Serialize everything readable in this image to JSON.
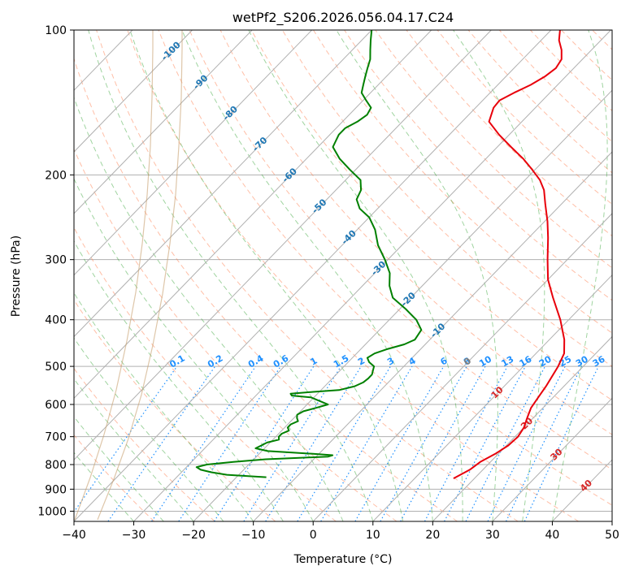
{
  "chart_data": {
    "type": "line",
    "subtype": "skew-T log-P diagram",
    "title": "wetPf2_S206.2026.056.04.17.C24",
    "xlabel": "Temperature (°C)",
    "ylabel": "Pressure (hPa)",
    "xlim": [
      -40,
      50
    ],
    "ylim": [
      1050,
      100
    ],
    "y_scale": "log",
    "grid": true,
    "x_ticks": [
      "−40",
      "−30",
      "−20",
      "−10",
      "0",
      "10",
      "20",
      "30",
      "40",
      "50"
    ],
    "x_tick_values": [
      -40,
      -30,
      -20,
      -10,
      0,
      10,
      20,
      30,
      40,
      50
    ],
    "y_ticks": [
      "100",
      "200",
      "300",
      "400",
      "500",
      "600",
      "700",
      "800",
      "900",
      "1000"
    ],
    "y_tick_values": [
      100,
      200,
      300,
      400,
      500,
      600,
      700,
      800,
      900,
      1000
    ],
    "series": [
      {
        "kind": "temperature",
        "color": "#e8000b",
        "points": [
          [
            855,
            16.5
          ],
          [
            820,
            17.8
          ],
          [
            790,
            18.3
          ],
          [
            760,
            19.5
          ],
          [
            730,
            20.3
          ],
          [
            700,
            20.5
          ],
          [
            670,
            20.0
          ],
          [
            640,
            19.0
          ],
          [
            610,
            18.0
          ],
          [
            580,
            17.5
          ],
          [
            550,
            17.0
          ],
          [
            520,
            16.3
          ],
          [
            500,
            15.8
          ],
          [
            470,
            14.7
          ],
          [
            440,
            12.5
          ],
          [
            400,
            8.6
          ],
          [
            360,
            3.8
          ],
          [
            330,
            0.0
          ],
          [
            300,
            -3.3
          ],
          [
            270,
            -6.8
          ],
          [
            250,
            -9.5
          ],
          [
            230,
            -12.7
          ],
          [
            215,
            -15.2
          ],
          [
            205,
            -17.5
          ],
          [
            195,
            -20.5
          ],
          [
            185,
            -23.8
          ],
          [
            175,
            -27.7
          ],
          [
            165,
            -31.7
          ],
          [
            155,
            -35.5
          ],
          [
            145,
            -37.0
          ],
          [
            140,
            -37.2
          ],
          [
            135,
            -36.0
          ],
          [
            130,
            -34.5
          ],
          [
            125,
            -33.5
          ],
          [
            120,
            -33.0
          ],
          [
            115,
            -33.5
          ],
          [
            110,
            -35.0
          ],
          [
            105,
            -37.0
          ],
          [
            100,
            -38.5
          ]
        ]
      },
      {
        "kind": "dewpoint",
        "color": "#008000",
        "points": [
          [
            850,
            -15.0
          ],
          [
            840,
            -22.0
          ],
          [
            830,
            -25.0
          ],
          [
            820,
            -27.2
          ],
          [
            810,
            -28.3
          ],
          [
            800,
            -27.0
          ],
          [
            790,
            -23.0
          ],
          [
            780,
            -18.0
          ],
          [
            775,
            -13.0
          ],
          [
            770,
            -8.0
          ],
          [
            765,
            -7.5
          ],
          [
            760,
            -11.0
          ],
          [
            750,
            -19.0
          ],
          [
            740,
            -21.5
          ],
          [
            730,
            -21.0
          ],
          [
            720,
            -20.5
          ],
          [
            710,
            -19.0
          ],
          [
            700,
            -19.5
          ],
          [
            690,
            -19.5
          ],
          [
            680,
            -18.8
          ],
          [
            670,
            -19.5
          ],
          [
            660,
            -19.5
          ],
          [
            650,
            -18.8
          ],
          [
            640,
            -19.5
          ],
          [
            630,
            -20.0
          ],
          [
            620,
            -19.5
          ],
          [
            610,
            -18.0
          ],
          [
            600,
            -16.5
          ],
          [
            590,
            -18.5
          ],
          [
            580,
            -20.5
          ],
          [
            575,
            -24.0
          ],
          [
            570,
            -24.5
          ],
          [
            565,
            -21.0
          ],
          [
            560,
            -17.0
          ],
          [
            550,
            -15.0
          ],
          [
            540,
            -14.2
          ],
          [
            530,
            -14.0
          ],
          [
            520,
            -14.0
          ],
          [
            510,
            -14.5
          ],
          [
            500,
            -15.0
          ],
          [
            490,
            -16.5
          ],
          [
            480,
            -17.5
          ],
          [
            470,
            -17.0
          ],
          [
            460,
            -15.5
          ],
          [
            450,
            -13.5
          ],
          [
            440,
            -12.5
          ],
          [
            420,
            -13.0
          ],
          [
            400,
            -15.5
          ],
          [
            380,
            -19.0
          ],
          [
            360,
            -23.0
          ],
          [
            340,
            -25.5
          ],
          [
            320,
            -27.5
          ],
          [
            300,
            -30.5
          ],
          [
            280,
            -34.0
          ],
          [
            260,
            -37.0
          ],
          [
            245,
            -40.0
          ],
          [
            235,
            -43.0
          ],
          [
            225,
            -45.0
          ],
          [
            215,
            -45.8
          ],
          [
            205,
            -47.5
          ],
          [
            195,
            -51.0
          ],
          [
            185,
            -54.5
          ],
          [
            175,
            -57.5
          ],
          [
            165,
            -58.5
          ],
          [
            160,
            -58.5
          ],
          [
            155,
            -57.5
          ],
          [
            150,
            -57.0
          ],
          [
            145,
            -57.5
          ],
          [
            140,
            -59.5
          ],
          [
            135,
            -61.5
          ],
          [
            130,
            -62.5
          ],
          [
            125,
            -63.5
          ],
          [
            120,
            -64.5
          ],
          [
            115,
            -65.5
          ],
          [
            110,
            -67.0
          ],
          [
            105,
            -68.5
          ],
          [
            100,
            -70.0
          ]
        ]
      }
    ],
    "isotherm_labels": [
      "-100",
      "-90",
      "-80",
      "-70",
      "-60",
      "-50",
      "-40",
      "-30",
      "-20",
      "-10",
      "0",
      "10",
      "20",
      "30",
      "40"
    ],
    "mixing_ratio_labels": [
      "0.1",
      "0.2",
      "0.4",
      "0.6",
      "1",
      "1.5",
      "2",
      "3",
      "4",
      "6",
      "8",
      "10",
      "13",
      "16",
      "20",
      "25",
      "30",
      "36"
    ],
    "mixing_ratio_values": [
      0.1,
      0.2,
      0.4,
      0.6,
      1,
      1.5,
      2,
      3,
      4,
      6,
      8,
      10,
      13,
      16,
      20,
      25,
      30,
      36
    ],
    "colors": {
      "isotherm_label_cold": "#1f77b4",
      "isotherm_label_warm": "#d62728",
      "isotherm_label_zero": "#7f7f7f",
      "mixing_ratio": "#1e90ff",
      "dry_adiabat": "#ff7f50",
      "moist_adiabat": "#2ca02c",
      "grid": "#b0b0b0",
      "stability_curve": "#c8a070"
    }
  }
}
